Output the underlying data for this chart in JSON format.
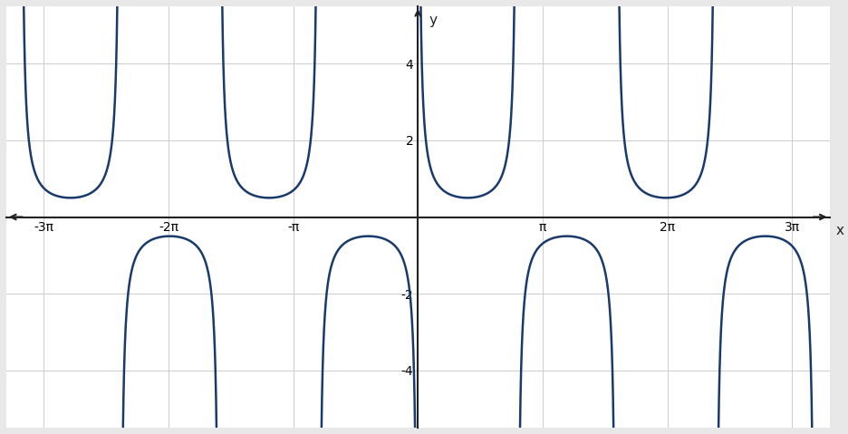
{
  "title": "",
  "xlabel": "x",
  "ylabel": "y",
  "xlim": [
    -3.3,
    3.3
  ],
  "ylim": [
    -5.5,
    5.5
  ],
  "xticks": [
    -3,
    -2,
    -1,
    0,
    1,
    2,
    3
  ],
  "xtick_labels": [
    "-3π",
    "-2π",
    "-π",
    "",
    "π",
    "2π",
    "3π"
  ],
  "yticks": [
    -4,
    -2,
    2,
    4
  ],
  "ytick_labels": [
    "-4",
    "-2",
    "2",
    "4"
  ],
  "pi": 3.14159265358979,
  "amplitude": -0.5,
  "freq": 0.4,
  "phase": 5,
  "background_color": "#f0f0f0",
  "plot_bg_color": "#ffffff",
  "curve_color": "#1a3a6b",
  "axis_color": "#222222",
  "grid_color": "#cccccc",
  "figsize": [
    9.37,
    4.79
  ],
  "dpi": 100
}
